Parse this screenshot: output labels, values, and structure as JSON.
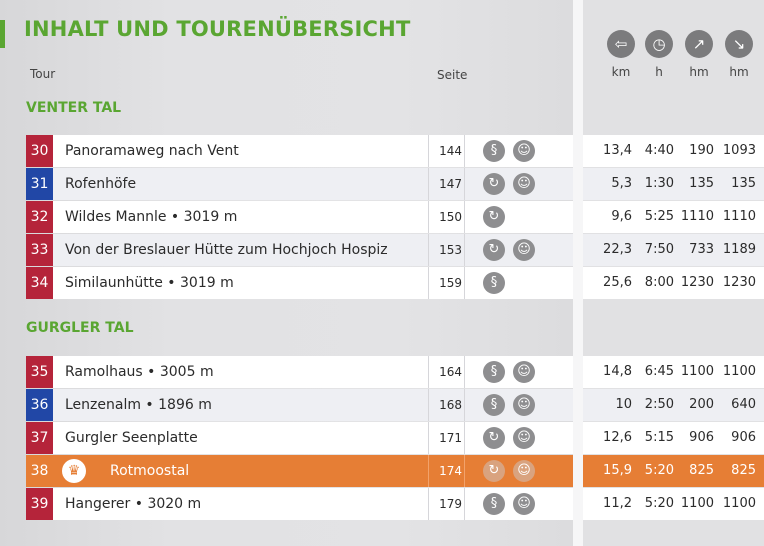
{
  "title": "INHALT UND TOURENÜBERSICHT",
  "header": {
    "tour": "Tour",
    "seite": "Seite"
  },
  "units": [
    "km",
    "h",
    "hm",
    "hm"
  ],
  "unit_icons": [
    "signpost-icon",
    "clock-icon",
    "ascent-icon",
    "descent-icon"
  ],
  "colors": {
    "green": "#5aa632",
    "red": "#b5243a",
    "blue": "#2147a6",
    "orange": "#e67e35"
  },
  "sections": [
    {
      "name": "VENTER TAL",
      "tours": [
        {
          "num": "30",
          "color": "red",
          "name": "Panoramaweg nach Vent",
          "page": "144",
          "icons": [
            "path",
            "bear"
          ],
          "km": "13,4",
          "h": "4:40",
          "up": "190",
          "down": "1093"
        },
        {
          "num": "31",
          "color": "blue",
          "name": "Rofenhöfe",
          "page": "147",
          "icons": [
            "loop",
            "bear"
          ],
          "km": "5,3",
          "h": "1:30",
          "up": "135",
          "down": "135"
        },
        {
          "num": "32",
          "color": "red",
          "name": "Wildes Mannle • 3019 m",
          "page": "150",
          "icons": [
            "loop"
          ],
          "km": "9,6",
          "h": "5:25",
          "up": "1110",
          "down": "1110"
        },
        {
          "num": "33",
          "color": "red",
          "name": "Von der Breslauer Hütte zum Hochjoch Hospiz",
          "page": "153",
          "icons": [
            "loop",
            "bear"
          ],
          "km": "22,3",
          "h": "7:50",
          "up": "733",
          "down": "1189"
        },
        {
          "num": "34",
          "color": "red",
          "name": "Similaunhütte • 3019 m",
          "page": "159",
          "icons": [
            "path"
          ],
          "km": "25,6",
          "h": "8:00",
          "up": "1230",
          "down": "1230"
        }
      ]
    },
    {
      "name": "GURGLER TAL",
      "tours": [
        {
          "num": "35",
          "color": "red",
          "name": "Ramolhaus • 3005 m",
          "page": "164",
          "icons": [
            "path",
            "bear"
          ],
          "km": "14,8",
          "h": "6:45",
          "up": "1100",
          "down": "1100"
        },
        {
          "num": "36",
          "color": "blue",
          "name": "Lenzenalm • 1896 m",
          "page": "168",
          "icons": [
            "path",
            "bear"
          ],
          "km": "10",
          "h": "2:50",
          "up": "200",
          "down": "640"
        },
        {
          "num": "37",
          "color": "red",
          "name": "Gurgler Seenplatte",
          "page": "171",
          "icons": [
            "loop",
            "bear"
          ],
          "km": "12,6",
          "h": "5:15",
          "up": "906",
          "down": "906"
        },
        {
          "num": "38",
          "color": "orange",
          "name": "Rotmoostal",
          "page": "174",
          "icons": [
            "loop",
            "bear"
          ],
          "km": "15,9",
          "h": "5:20",
          "up": "825",
          "down": "825"
        },
        {
          "num": "39",
          "color": "red",
          "name": "Hangerer • 3020 m",
          "page": "179",
          "icons": [
            "path",
            "bear"
          ],
          "km": "11,2",
          "h": "5:20",
          "up": "1100",
          "down": "1100"
        }
      ]
    }
  ]
}
